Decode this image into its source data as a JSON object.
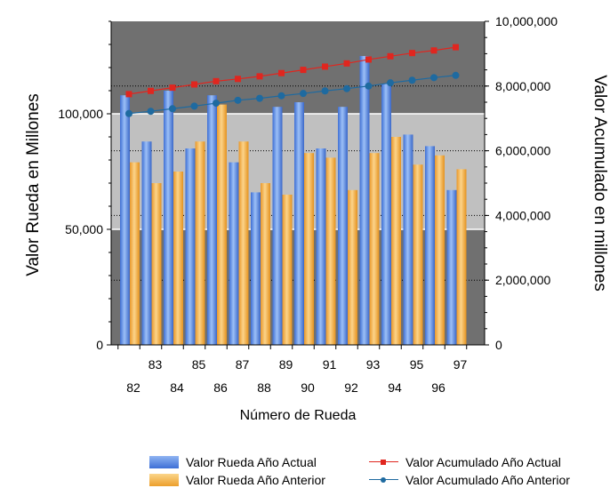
{
  "chart_data": {
    "type": "bar",
    "title": "",
    "xlabel": "Número de Rueda",
    "ylabel": "Valor Rueda en Millones",
    "y2label": "Valor Acumulado en millones",
    "ylim": [
      0,
      140000
    ],
    "y2lim": [
      0,
      10000000
    ],
    "yticks": [
      "0",
      "50,000",
      "100,000"
    ],
    "y2ticks": [
      "0",
      "2,000,000",
      "4,000,000",
      "6,000,000",
      "8,000,000",
      "10,000,000"
    ],
    "categories": [
      "82",
      "83",
      "84",
      "85",
      "86",
      "87",
      "88",
      "89",
      "90",
      "91",
      "92",
      "93",
      "94",
      "95",
      "96",
      "97"
    ],
    "series": [
      {
        "name": "Valor Rueda Año Actual",
        "type": "bar",
        "axis": "left",
        "color": "#4f81e0",
        "values": [
          108000,
          88000,
          110000,
          85000,
          108000,
          79000,
          66000,
          103000,
          105000,
          85000,
          103000,
          125000,
          113000,
          91000,
          86000,
          67000
        ]
      },
      {
        "name": "Valor Rueda Año Anterior",
        "type": "bar",
        "axis": "left",
        "color": "#f5b041",
        "values": [
          79000,
          70000,
          75000,
          88000,
          104000,
          88000,
          70000,
          65000,
          83000,
          81000,
          67000,
          83000,
          90000,
          78000,
          82000,
          76000
        ]
      },
      {
        "name": "Valor Acumulado Año Actual",
        "type": "line",
        "axis": "right",
        "color": "#e0261f",
        "marker": "square",
        "values": [
          7750000,
          7850000,
          7950000,
          8050000,
          8150000,
          8220000,
          8300000,
          8400000,
          8500000,
          8600000,
          8700000,
          8820000,
          8920000,
          9020000,
          9100000,
          9200000
        ]
      },
      {
        "name": "Valor Acumulado Año Anterior",
        "type": "line",
        "axis": "right",
        "color": "#1e6aa0",
        "marker": "circle",
        "values": [
          7150000,
          7220000,
          7300000,
          7380000,
          7470000,
          7560000,
          7620000,
          7700000,
          7770000,
          7850000,
          7920000,
          8000000,
          8100000,
          8180000,
          8260000,
          8330000
        ]
      }
    ],
    "bands": [
      "#707070",
      "#c0c0c0",
      "#707070"
    ],
    "grid": true,
    "legend_position": "bottom"
  }
}
